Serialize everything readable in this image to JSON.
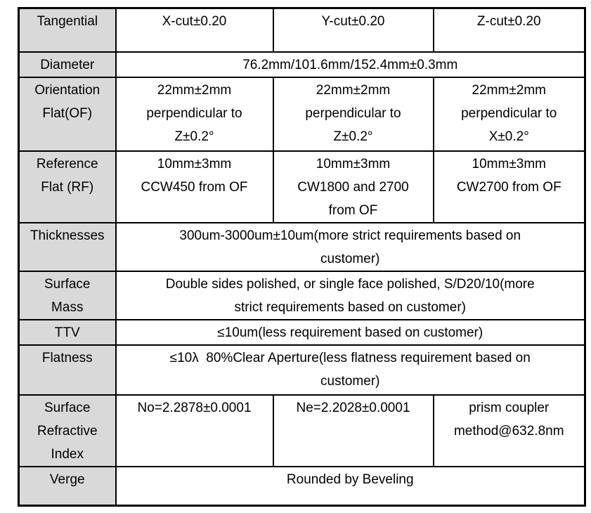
{
  "colors": {
    "header_bg": "#d9d9d9",
    "border": "#000000",
    "text": "#000000"
  },
  "table": {
    "rows": [
      {
        "label": "Tangential",
        "cells": [
          "X-cut±0.20",
          "Y-cut±0.20",
          "Z-cut±0.20"
        ]
      },
      {
        "label": "Diameter",
        "span": "76.2mm/101.6mm/152.4mm±0.3mm"
      },
      {
        "label": "Orientation\nFlat(OF)",
        "cells": [
          "22mm±2mm\nperpendicular to\nZ±0.2°",
          "22mm±2mm\nperpendicular to\nZ±0.2°",
          "22mm±2mm\nperpendicular to\nX±0.2°"
        ]
      },
      {
        "label": "Reference\nFlat (RF)",
        "cells": [
          "10mm±3mm\nCCW450 from OF",
          "10mm±3mm\nCW1800 and 2700\nfrom OF",
          "10mm±3mm\nCW2700 from OF"
        ]
      },
      {
        "label": "Thicknesses",
        "span": "300um-3000um±10um(more strict requirements based on\ncustomer)"
      },
      {
        "label": "Surface\nMass",
        "span": "Double sides polished, or single face polished, S/D20/10(more\nstrict requirements based on customer)"
      },
      {
        "label": "TTV",
        "span": "≤10um(less requirement based on customer)"
      },
      {
        "label": "Flatness",
        "span": "≤10λ  80%Clear Aperture(less flatness requirement based on\ncustomer)"
      },
      {
        "label": "Surface\nRefractive\nIndex",
        "cells": [
          "No=2.2878±0.0001",
          "Ne=2.2028±0.0001",
          "prism coupler\nmethod@632.8nm"
        ]
      },
      {
        "label": "Verge",
        "span": "Rounded by Beveling"
      }
    ]
  }
}
